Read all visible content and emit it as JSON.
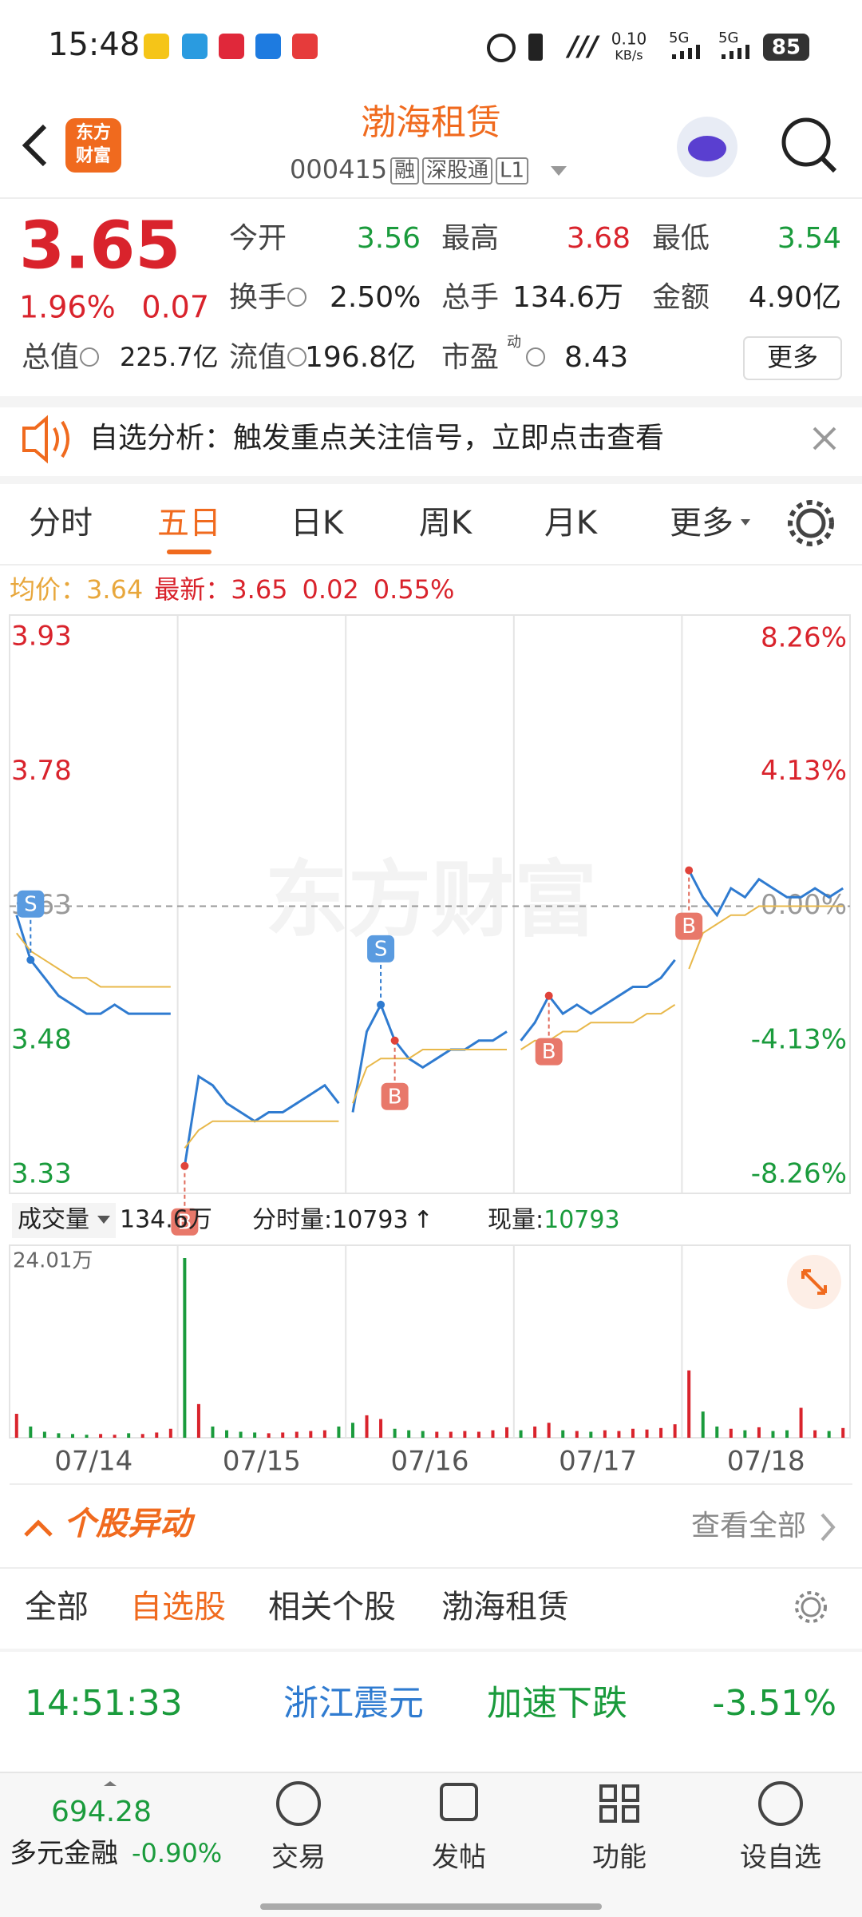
{
  "status_bar": {
    "time": "15:48",
    "net_speed": "0.10",
    "net_unit": "KB/s",
    "signal_1": "5G",
    "signal_2": "5G",
    "battery": "85"
  },
  "header": {
    "logo_line_1": "东方",
    "logo_line_2": "财富",
    "title": "渤海租赁",
    "code": "000415",
    "tags": [
      "融",
      "深股通",
      "L1"
    ]
  },
  "quote": {
    "price": "3.65",
    "change_pct": "1.96%",
    "change": "0.07",
    "more": "更多",
    "fields": [
      {
        "label": "今开",
        "value": "3.56",
        "color": "#1a9b3c"
      },
      {
        "label": "最高",
        "value": "3.68",
        "color": "#d9232c"
      },
      {
        "label": "最低",
        "value": "3.54",
        "color": "#1a9b3c"
      },
      {
        "label": "换手",
        "value": "2.50%",
        "color": "#222222"
      },
      {
        "label": "总手",
        "value": "134.6万",
        "color": "#222222"
      },
      {
        "label": "金额",
        "value": "4.90亿",
        "color": "#222222"
      },
      {
        "label": "总值",
        "value": "225.7亿",
        "color": "#222222"
      },
      {
        "label": "流值",
        "value": "196.8亿",
        "color": "#222222"
      },
      {
        "label": "市盈",
        "sup": "动",
        "value": "8.43",
        "color": "#222222"
      }
    ]
  },
  "notice": "自选分析：触发重点关注信号，立即点击查看",
  "tabs": {
    "items": [
      "分时",
      "五日",
      "日K",
      "周K",
      "月K",
      "更多"
    ],
    "active": 1
  },
  "info_line": {
    "avg_label": "均价：",
    "avg": "3.64",
    "latest_label": "最新：",
    "latest": "3.65",
    "change": "0.02",
    "change_pct": "0.55%"
  },
  "chart_data": [
    {
      "type": "line",
      "watermark": "东方财富",
      "ylim": [
        3.33,
        3.93
      ],
      "yticks": [
        3.93,
        3.78,
        3.63,
        3.48,
        3.33
      ],
      "y2lim": [
        -8.26,
        8.26
      ],
      "y2ticks": [
        {
          "value": 8.26,
          "label": "8.26%"
        },
        {
          "value": 4.13,
          "label": "4.13%"
        },
        {
          "value": 0,
          "label": "0.00%"
        },
        {
          "value": -4.13,
          "label": "-4.13%"
        },
        {
          "value": -8.26,
          "label": "-8.26%"
        }
      ],
      "up_color": "#d9232c",
      "down_color": "#1a9b3c",
      "series": [
        {
          "color": "#2f7bd0",
          "values": [
            3.62,
            3.57,
            3.55,
            3.53,
            3.52,
            3.51,
            3.51,
            3.52,
            3.51,
            3.51,
            3.51,
            3.51,
            3.34,
            3.44,
            3.43,
            3.41,
            3.4,
            3.39,
            3.4,
            3.4,
            3.41,
            3.42,
            3.43,
            3.41,
            3.4,
            3.49,
            3.52,
            3.48,
            3.46,
            3.45,
            3.46,
            3.47,
            3.47,
            3.48,
            3.48,
            3.49,
            3.48,
            3.5,
            3.53,
            3.51,
            3.52,
            3.51,
            3.52,
            3.53,
            3.54,
            3.54,
            3.55,
            3.57,
            3.67,
            3.64,
            3.62,
            3.65,
            3.64,
            3.66,
            3.65,
            3.64,
            3.64,
            3.65,
            3.64,
            3.65
          ]
        },
        {
          "color": "#e8b84a",
          "values": [
            3.6,
            3.58,
            3.57,
            3.56,
            3.55,
            3.55,
            3.54,
            3.54,
            3.54,
            3.54,
            3.54,
            3.54,
            3.36,
            3.38,
            3.39,
            3.39,
            3.39,
            3.39,
            3.39,
            3.39,
            3.39,
            3.39,
            3.39,
            3.39,
            3.41,
            3.45,
            3.46,
            3.46,
            3.46,
            3.47,
            3.47,
            3.47,
            3.47,
            3.47,
            3.47,
            3.47,
            3.47,
            3.48,
            3.48,
            3.49,
            3.49,
            3.5,
            3.5,
            3.5,
            3.5,
            3.51,
            3.51,
            3.52,
            3.56,
            3.6,
            3.61,
            3.62,
            3.62,
            3.63,
            3.63,
            3.63,
            3.63,
            3.63,
            3.63,
            3.63
          ]
        }
      ],
      "signals": [
        "S",
        "B",
        "S",
        "B",
        "B",
        "B"
      ]
    },
    {
      "type": "bar",
      "title": "成交量",
      "total": "134.6万",
      "tick_volume_label": "分时量:",
      "tick_volume": "10793",
      "arrow": "↑",
      "current_label": "现量:",
      "current": "10793",
      "ylim": [
        0,
        24.01
      ],
      "yticks": [
        {
          "value": 24.01,
          "label": "24.01万"
        }
      ],
      "days": [
        "07/14",
        "07/15",
        "07/16",
        "07/17",
        "07/18"
      ],
      "up_color": "#d9232c",
      "down_color": "#1a9b3c",
      "values": [
        3.2,
        1.5,
        0.8,
        0.6,
        0.5,
        0.4,
        0.5,
        0.4,
        0.6,
        0.5,
        0.7,
        1.2,
        24.01,
        4.5,
        1.5,
        1.0,
        0.8,
        0.7,
        0.6,
        0.7,
        0.8,
        0.9,
        1.0,
        1.5,
        2.0,
        3.0,
        2.5,
        1.2,
        1.0,
        0.9,
        0.8,
        0.8,
        0.9,
        0.8,
        1.0,
        1.4,
        1.0,
        1.5,
        2.0,
        1.0,
        0.9,
        0.8,
        1.0,
        0.9,
        1.2,
        1.1,
        1.3,
        1.8,
        9.0,
        3.5,
        1.5,
        1.2,
        1.0,
        1.4,
        0.9,
        1.0,
        4.0,
        1.0,
        0.9,
        1.3
      ]
    }
  ],
  "movers": {
    "title": "个股异动",
    "view_all": "查看全部",
    "tabs": [
      "全部",
      "自选股",
      "相关个股",
      "渤海租赁"
    ],
    "active": 1,
    "row": {
      "time": "14:51:33",
      "name": "浙江震元",
      "event": "加速下跌",
      "change": "-3.51%"
    }
  },
  "bottom_nav": {
    "index_value": "694.28",
    "index_name": "多元金融",
    "index_change": "-0.90%",
    "items": [
      "交易",
      "发帖",
      "功能",
      "设自选"
    ]
  }
}
